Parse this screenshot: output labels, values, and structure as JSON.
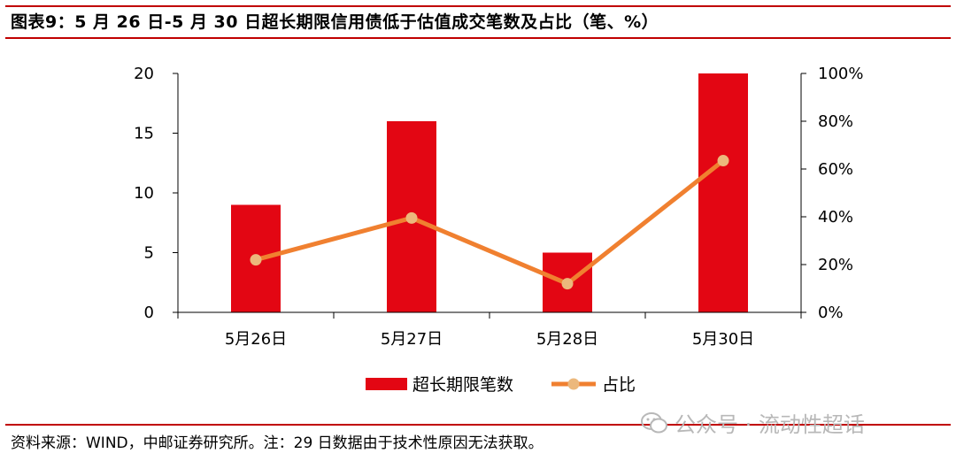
{
  "header": {
    "title": "图表9：5 月 26 日-5 月 30 日超长期限信用债低于估值成交笔数及占比（笔、%）"
  },
  "footer": {
    "source": "资料来源：WIND，中邮证券研究所。注：29 日数据由于技术性原因无法获取。"
  },
  "watermark": {
    "text": "公众号 · 流动性超话",
    "icon": "wechat-icon"
  },
  "colors": {
    "rule": "#c00000",
    "bar": "#e30613",
    "line": "#f08030",
    "marker": "#ecb87c",
    "axis": "#000000"
  },
  "chart_data": {
    "type": "bar",
    "categories": [
      "5月26日",
      "5月27日",
      "5月28日",
      "5月30日"
    ],
    "series": [
      {
        "name": "超长期限笔数",
        "type": "bar",
        "axis": "left",
        "values": [
          9,
          16,
          5,
          20
        ]
      },
      {
        "name": "占比",
        "type": "line",
        "axis": "right",
        "values": [
          22,
          39.5,
          12,
          63.5
        ]
      }
    ],
    "y_left": {
      "ylim": [
        0,
        20
      ],
      "ticks": [
        "0",
        "5",
        "10",
        "15",
        "20"
      ]
    },
    "y_right": {
      "ylim": [
        0,
        100
      ],
      "ticks": [
        "0%",
        "20%",
        "40%",
        "60%",
        "80%",
        "100%"
      ]
    },
    "grid": false,
    "legend_position": "bottom"
  }
}
